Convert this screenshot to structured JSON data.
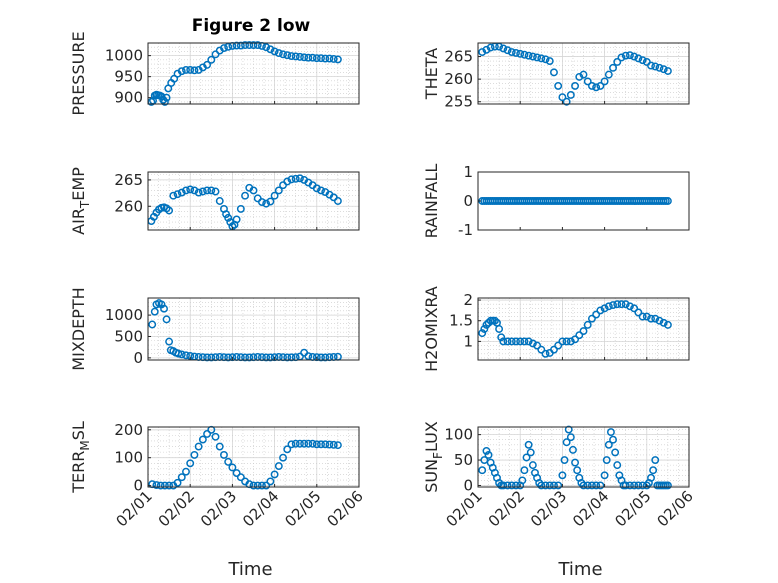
{
  "figure": {
    "title": "Figure 2 low",
    "xlabel": "Time"
  },
  "colors": {
    "series": "#0072bd",
    "axes": "#262626",
    "grid": "#d6d6d6"
  },
  "chart_data": [
    {
      "type": "scatter",
      "ylabel": "PRESSURE",
      "ylim": [
        885,
        1030
      ],
      "yticks": [
        900,
        950,
        1000
      ],
      "xlim": [
        0,
        5
      ],
      "xticks": [
        "02/01",
        "02/02",
        "02/03",
        "02/04",
        "02/05",
        "02/06"
      ],
      "grid": true,
      "x": [
        0.08,
        0.12,
        0.16,
        0.2,
        0.24,
        0.28,
        0.32,
        0.36,
        0.4,
        0.44,
        0.48,
        0.55,
        0.62,
        0.7,
        0.8,
        0.9,
        1.0,
        1.1,
        1.2,
        1.3,
        1.4,
        1.5,
        1.6,
        1.7,
        1.8,
        1.9,
        2.0,
        2.1,
        2.2,
        2.3,
        2.4,
        2.5,
        2.6,
        2.7,
        2.8,
        2.9,
        3.0,
        3.1,
        3.2,
        3.3,
        3.4,
        3.5,
        3.6,
        3.7,
        3.8,
        3.9,
        4.0,
        4.1,
        4.2,
        4.3,
        4.4,
        4.5
      ],
      "y": [
        890,
        893,
        905,
        907,
        906,
        905,
        903,
        895,
        890,
        900,
        922,
        935,
        945,
        957,
        963,
        966,
        966,
        965,
        966,
        972,
        978,
        990,
        1003,
        1012,
        1018,
        1021,
        1023,
        1024,
        1024,
        1025,
        1025,
        1025,
        1025,
        1023,
        1020,
        1015,
        1010,
        1006,
        1003,
        1001,
        999,
        998,
        997,
        996,
        995,
        995,
        994,
        994,
        993,
        993,
        992,
        991
      ]
    },
    {
      "type": "scatter",
      "ylabel": "THETA",
      "ylim": [
        254.5,
        268
      ],
      "yticks": [
        255,
        260,
        265
      ],
      "xlim": [
        0,
        5
      ],
      "xticks": [
        "02/01",
        "02/02",
        "02/03",
        "02/04",
        "02/05",
        "02/06"
      ],
      "grid": true,
      "x": [
        0.1,
        0.2,
        0.3,
        0.4,
        0.5,
        0.6,
        0.7,
        0.8,
        0.9,
        1.0,
        1.1,
        1.2,
        1.3,
        1.4,
        1.5,
        1.6,
        1.7,
        1.8,
        1.9,
        2.0,
        2.1,
        2.2,
        2.3,
        2.4,
        2.5,
        2.6,
        2.7,
        2.8,
        2.9,
        3.0,
        3.1,
        3.2,
        3.3,
        3.4,
        3.5,
        3.6,
        3.7,
        3.8,
        3.9,
        4.0,
        4.1,
        4.2,
        4.3,
        4.4,
        4.5
      ],
      "y": [
        266,
        266.5,
        267,
        267.2,
        267.2,
        266.8,
        266.4,
        266.0,
        265.8,
        265.6,
        265.4,
        265.2,
        265.0,
        264.8,
        264.6,
        264.4,
        264.0,
        261.5,
        258.5,
        256.0,
        255.0,
        256.5,
        258.5,
        260.5,
        261.0,
        259.5,
        258.5,
        258.2,
        258.5,
        259.5,
        261.0,
        262.5,
        263.8,
        264.8,
        265.2,
        265.3,
        265.0,
        264.6,
        264.2,
        263.8,
        263.0,
        262.8,
        262.5,
        262.2,
        261.8
      ]
    },
    {
      "type": "scatter",
      "ylabel": "AIRTEMP",
      "ylim": [
        255.5,
        266.5
      ],
      "yticks": [
        260,
        265
      ],
      "xlim": [
        0,
        5
      ],
      "xticks": [
        "02/01",
        "02/02",
        "02/03",
        "02/04",
        "02/05",
        "02/06"
      ],
      "grid": true,
      "x": [
        0.08,
        0.14,
        0.2,
        0.26,
        0.32,
        0.38,
        0.44,
        0.5,
        0.6,
        0.7,
        0.8,
        0.9,
        1.0,
        1.1,
        1.2,
        1.3,
        1.4,
        1.5,
        1.6,
        1.7,
        1.8,
        1.85,
        1.9,
        1.95,
        2.0,
        2.05,
        2.1,
        2.2,
        2.3,
        2.4,
        2.5,
        2.6,
        2.7,
        2.8,
        2.9,
        3.0,
        3.1,
        3.2,
        3.3,
        3.4,
        3.5,
        3.6,
        3.7,
        3.8,
        3.9,
        4.0,
        4.1,
        4.2,
        4.3,
        4.4,
        4.5
      ],
      "y": [
        257.2,
        258.0,
        258.8,
        259.4,
        259.7,
        259.8,
        259.6,
        259.2,
        262.0,
        262.3,
        262.6,
        263.0,
        263.2,
        263.0,
        262.6,
        262.8,
        263.0,
        263.0,
        262.8,
        261.0,
        259.5,
        258.5,
        257.8,
        257.0,
        256.2,
        256.5,
        257.5,
        259.5,
        262.0,
        263.5,
        263.0,
        261.5,
        260.8,
        260.5,
        260.9,
        262.0,
        263.0,
        264.0,
        264.7,
        265.1,
        265.2,
        265.3,
        265.0,
        264.5,
        264.0,
        263.4,
        263.0,
        262.7,
        262.2,
        261.7,
        261.0
      ]
    },
    {
      "type": "scatter",
      "ylabel": "RAINFALL",
      "ylim": [
        -1,
        1
      ],
      "yticks": [
        -1,
        0,
        1
      ],
      "xlim": [
        0,
        5
      ],
      "xticks": [
        "02/01",
        "02/02",
        "02/03",
        "02/04",
        "02/05",
        "02/06"
      ],
      "grid": false,
      "x_start": 0.1,
      "x_end": 4.5,
      "x_step": 0.05,
      "y_constant": 0
    },
    {
      "type": "scatter",
      "ylabel": "MIXDEPTH",
      "ylim": [
        -50,
        1400
      ],
      "yticks": [
        0,
        500,
        1000
      ],
      "xlim": [
        0,
        5
      ],
      "xticks": [
        "02/01",
        "02/02",
        "02/03",
        "02/04",
        "02/05",
        "02/06"
      ],
      "grid": true,
      "x": [
        0.1,
        0.16,
        0.2,
        0.26,
        0.32,
        0.38,
        0.44,
        0.5,
        0.54,
        0.6,
        0.66,
        0.72,
        0.8,
        0.9,
        1.0,
        1.1,
        1.2,
        1.3,
        1.4,
        1.5,
        1.6,
        1.7,
        1.8,
        1.9,
        2.0,
        2.1,
        2.2,
        2.3,
        2.4,
        2.5,
        2.6,
        2.7,
        2.8,
        2.9,
        3.0,
        3.1,
        3.2,
        3.3,
        3.4,
        3.5,
        3.6,
        3.7,
        3.8,
        3.9,
        4.0,
        4.1,
        4.2,
        4.3,
        4.4,
        4.5
      ],
      "y": [
        780,
        1080,
        1250,
        1280,
        1250,
        1150,
        900,
        380,
        180,
        160,
        120,
        100,
        80,
        60,
        45,
        30,
        20,
        15,
        10,
        10,
        15,
        20,
        15,
        10,
        15,
        20,
        15,
        10,
        10,
        15,
        20,
        15,
        10,
        10,
        15,
        20,
        15,
        10,
        12,
        15,
        30,
        120,
        40,
        20,
        15,
        10,
        10,
        15,
        20,
        25
      ]
    },
    {
      "type": "scatter",
      "ylabel": "H2OMIXRA",
      "ylim": [
        0.55,
        2.05
      ],
      "yticks": [
        1,
        1.5,
        2
      ],
      "xlim": [
        0,
        5
      ],
      "xticks": [
        "02/01",
        "02/02",
        "02/03",
        "02/04",
        "02/05",
        "02/06"
      ],
      "grid": true,
      "x": [
        0.1,
        0.15,
        0.2,
        0.25,
        0.3,
        0.35,
        0.4,
        0.45,
        0.5,
        0.55,
        0.6,
        0.7,
        0.8,
        0.9,
        1.0,
        1.1,
        1.2,
        1.3,
        1.4,
        1.5,
        1.6,
        1.7,
        1.8,
        1.9,
        2.0,
        2.1,
        2.2,
        2.3,
        2.4,
        2.5,
        2.6,
        2.7,
        2.8,
        2.9,
        3.0,
        3.1,
        3.2,
        3.3,
        3.4,
        3.5,
        3.6,
        3.7,
        3.8,
        3.9,
        4.0,
        4.1,
        4.2,
        4.3,
        4.4,
        4.5
      ],
      "y": [
        1.2,
        1.3,
        1.4,
        1.45,
        1.5,
        1.5,
        1.5,
        1.45,
        1.3,
        1.1,
        1.0,
        1.0,
        1.0,
        1.0,
        1.0,
        1.0,
        1.0,
        0.95,
        0.9,
        0.8,
        0.7,
        0.72,
        0.8,
        0.9,
        1.0,
        1.0,
        1.0,
        1.05,
        1.15,
        1.25,
        1.4,
        1.55,
        1.65,
        1.75,
        1.8,
        1.85,
        1.88,
        1.9,
        1.9,
        1.9,
        1.85,
        1.8,
        1.7,
        1.6,
        1.6,
        1.55,
        1.55,
        1.5,
        1.45,
        1.4
      ]
    },
    {
      "type": "scatter",
      "ylabel": "TERRMSL",
      "ylim": [
        -5,
        210
      ],
      "yticks": [
        0,
        100,
        200
      ],
      "xlim": [
        0,
        5
      ],
      "xticks": [
        "02/01",
        "02/02",
        "02/03",
        "02/04",
        "02/05",
        "02/06"
      ],
      "grid": true,
      "x": [
        0.1,
        0.2,
        0.3,
        0.4,
        0.5,
        0.6,
        0.7,
        0.8,
        0.9,
        1.0,
        1.1,
        1.2,
        1.3,
        1.4,
        1.5,
        1.6,
        1.7,
        1.8,
        1.9,
        2.0,
        2.1,
        2.2,
        2.3,
        2.4,
        2.5,
        2.6,
        2.7,
        2.8,
        2.9,
        3.0,
        3.1,
        3.2,
        3.3,
        3.4,
        3.5,
        3.6,
        3.7,
        3.8,
        3.9,
        4.0,
        4.1,
        4.2,
        4.3,
        4.4,
        4.5
      ],
      "y": [
        5,
        2,
        0,
        0,
        0,
        0,
        10,
        30,
        50,
        80,
        110,
        140,
        165,
        185,
        200,
        175,
        140,
        110,
        85,
        65,
        45,
        30,
        15,
        5,
        0,
        0,
        0,
        0,
        15,
        40,
        70,
        100,
        130,
        148,
        150,
        150,
        150,
        150,
        150,
        148,
        148,
        148,
        147,
        146,
        145
      ]
    },
    {
      "type": "scatter",
      "ylabel": "SUNFLUX",
      "ylim": [
        -3,
        115
      ],
      "yticks": [
        0,
        50,
        100
      ],
      "xlim": [
        0,
        5
      ],
      "xticks": [
        "02/01",
        "02/02",
        "02/03",
        "02/04",
        "02/05",
        "02/06"
      ],
      "grid": true,
      "x": [
        0.1,
        0.15,
        0.2,
        0.25,
        0.3,
        0.35,
        0.4,
        0.45,
        0.5,
        0.55,
        0.6,
        0.7,
        0.8,
        0.9,
        1.0,
        1.05,
        1.1,
        1.15,
        1.2,
        1.25,
        1.3,
        1.35,
        1.4,
        1.45,
        1.5,
        1.6,
        1.7,
        1.8,
        1.9,
        2.0,
        2.05,
        2.1,
        2.15,
        2.2,
        2.25,
        2.3,
        2.35,
        2.4,
        2.45,
        2.5,
        2.6,
        2.7,
        2.8,
        2.9,
        3.0,
        3.05,
        3.1,
        3.15,
        3.2,
        3.25,
        3.3,
        3.35,
        3.4,
        3.45,
        3.5,
        3.6,
        3.7,
        3.8,
        3.9,
        4.0,
        4.05,
        4.1,
        4.15,
        4.2,
        4.25,
        4.3,
        4.35,
        4.4,
        4.45,
        4.5
      ],
      "y": [
        30,
        50,
        68,
        60,
        45,
        35,
        25,
        15,
        5,
        0,
        0,
        0,
        0,
        0,
        0,
        10,
        30,
        55,
        80,
        65,
        40,
        25,
        15,
        5,
        0,
        0,
        0,
        0,
        0,
        20,
        50,
        85,
        110,
        95,
        70,
        45,
        30,
        15,
        5,
        0,
        0,
        0,
        0,
        0,
        20,
        50,
        80,
        105,
        90,
        65,
        40,
        20,
        10,
        0,
        0,
        0,
        0,
        0,
        0,
        0,
        5,
        15,
        30,
        50,
        0,
        0,
        0,
        0,
        0,
        0
      ]
    }
  ]
}
